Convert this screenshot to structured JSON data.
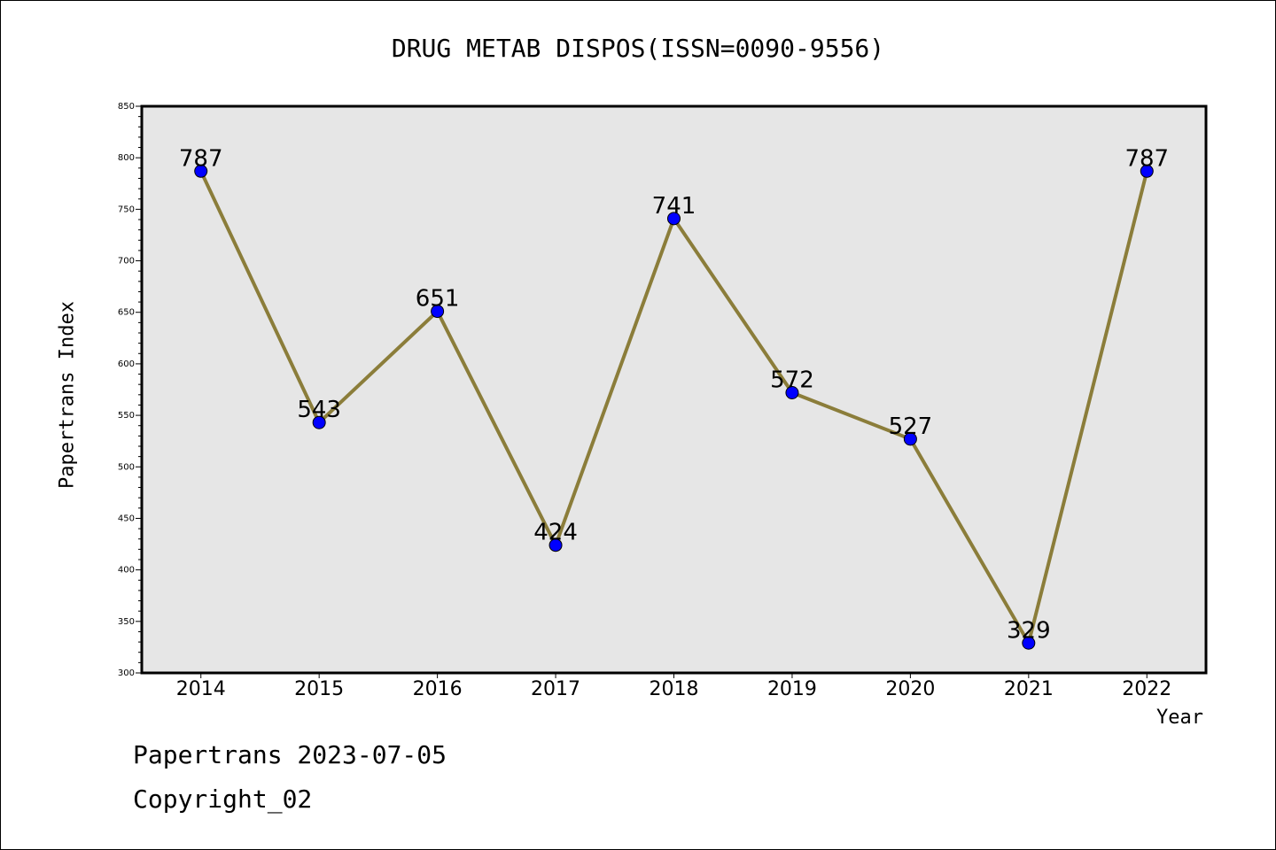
{
  "header": {
    "title": "DRUG METAB DISPOS(ISSN=0090-9556)"
  },
  "footer": {
    "line1": "Papertrans 2023-07-05",
    "line2": "Copyright_02"
  },
  "colors": {
    "plot_background": "#e6e6e6",
    "line": "#8b7d3a",
    "marker": "#0000ff"
  },
  "chart_data": {
    "type": "line",
    "title": "DRUG METAB DISPOS(ISSN=0090-9556)",
    "xlabel": "Year",
    "ylabel": "Papertrans Index",
    "categories": [
      "2014",
      "2015",
      "2016",
      "2017",
      "2018",
      "2019",
      "2020",
      "2021",
      "2022"
    ],
    "values": [
      787,
      543,
      651,
      424,
      741,
      572,
      527,
      329,
      787
    ],
    "data_labels": [
      "787",
      "543",
      "651",
      "424",
      "741",
      "572",
      "527",
      "329",
      "787"
    ],
    "ylim": [
      300,
      850
    ],
    "yticks": [
      300,
      350,
      400,
      450,
      500,
      550,
      600,
      650,
      700,
      750,
      800,
      850
    ],
    "ytick_labels": [
      "300",
      "350",
      "400",
      "450",
      "500",
      "550",
      "600",
      "650",
      "700",
      "750",
      "800",
      "850"
    ],
    "grid": false,
    "legend": "none"
  }
}
